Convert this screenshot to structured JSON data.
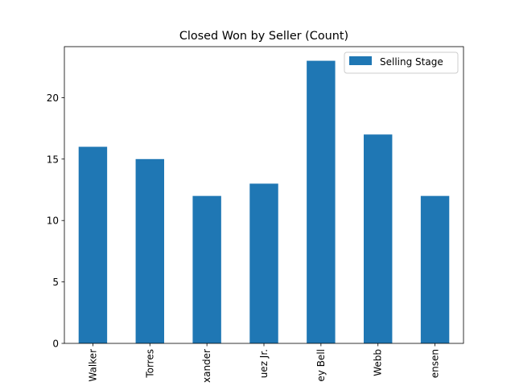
{
  "chart_data": {
    "type": "bar",
    "title": "Closed Won by Seller (Count)",
    "xlabel": "",
    "ylabel": "",
    "categories": [
      "Walker",
      "Torres",
      "xander",
      "uez Jr.",
      "ey Bell",
      "Webb",
      "ensen"
    ],
    "series": [
      {
        "name": "Selling Stage",
        "values": [
          16,
          15,
          12,
          13,
          23,
          17,
          12
        ],
        "color": "#1f77b4"
      }
    ],
    "ylim": [
      0,
      24.15
    ],
    "yticks": [
      0,
      5,
      10,
      15,
      20
    ],
    "grid": false,
    "legend": "top-right"
  }
}
